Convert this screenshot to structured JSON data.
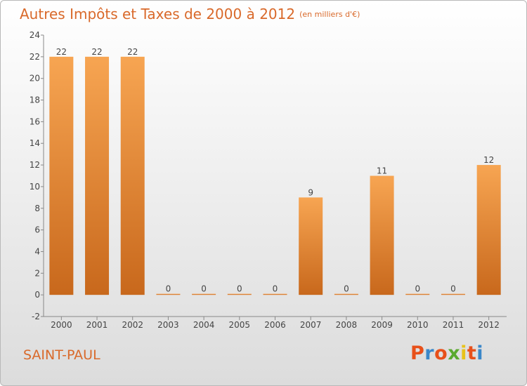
{
  "header": {
    "title": "Autres Impôts et Taxes de 2000 à 2012",
    "unit": "(en milliers d'€)"
  },
  "footer": {
    "commune": "SAINT-PAUL",
    "logo_text": "Proxiti",
    "logo_colors": [
      "#e8501a",
      "#3a87c9",
      "#e8501a",
      "#5aaa2e",
      "#e8c21a",
      "#e8501a",
      "#3a87c9"
    ]
  },
  "chart_data": {
    "type": "bar",
    "title": "Autres Impôts et Taxes de 2000 à 2012",
    "subtitle": "(en milliers d'€)",
    "categories": [
      "2000",
      "2001",
      "2002",
      "2003",
      "2004",
      "2005",
      "2006",
      "2007",
      "2008",
      "2009",
      "2010",
      "2011",
      "2012"
    ],
    "values": [
      22,
      22,
      22,
      0,
      0,
      0,
      0,
      9,
      0,
      11,
      0,
      0,
      12
    ],
    "data_labels": [
      "22",
      "22",
      "22",
      "0",
      "0",
      "0",
      "0",
      "9",
      "0",
      "11",
      "0",
      "0",
      "12"
    ],
    "ylim": [
      -2,
      24
    ],
    "yticks": [
      "-2",
      "0",
      "2",
      "4",
      "6",
      "8",
      "10",
      "12",
      "14",
      "16",
      "18",
      "20",
      "22",
      "24"
    ],
    "grid": false,
    "bar_color_top": "#f7a552",
    "bar_color_bottom": "#c8681c",
    "xlabel": "",
    "ylabel": ""
  }
}
